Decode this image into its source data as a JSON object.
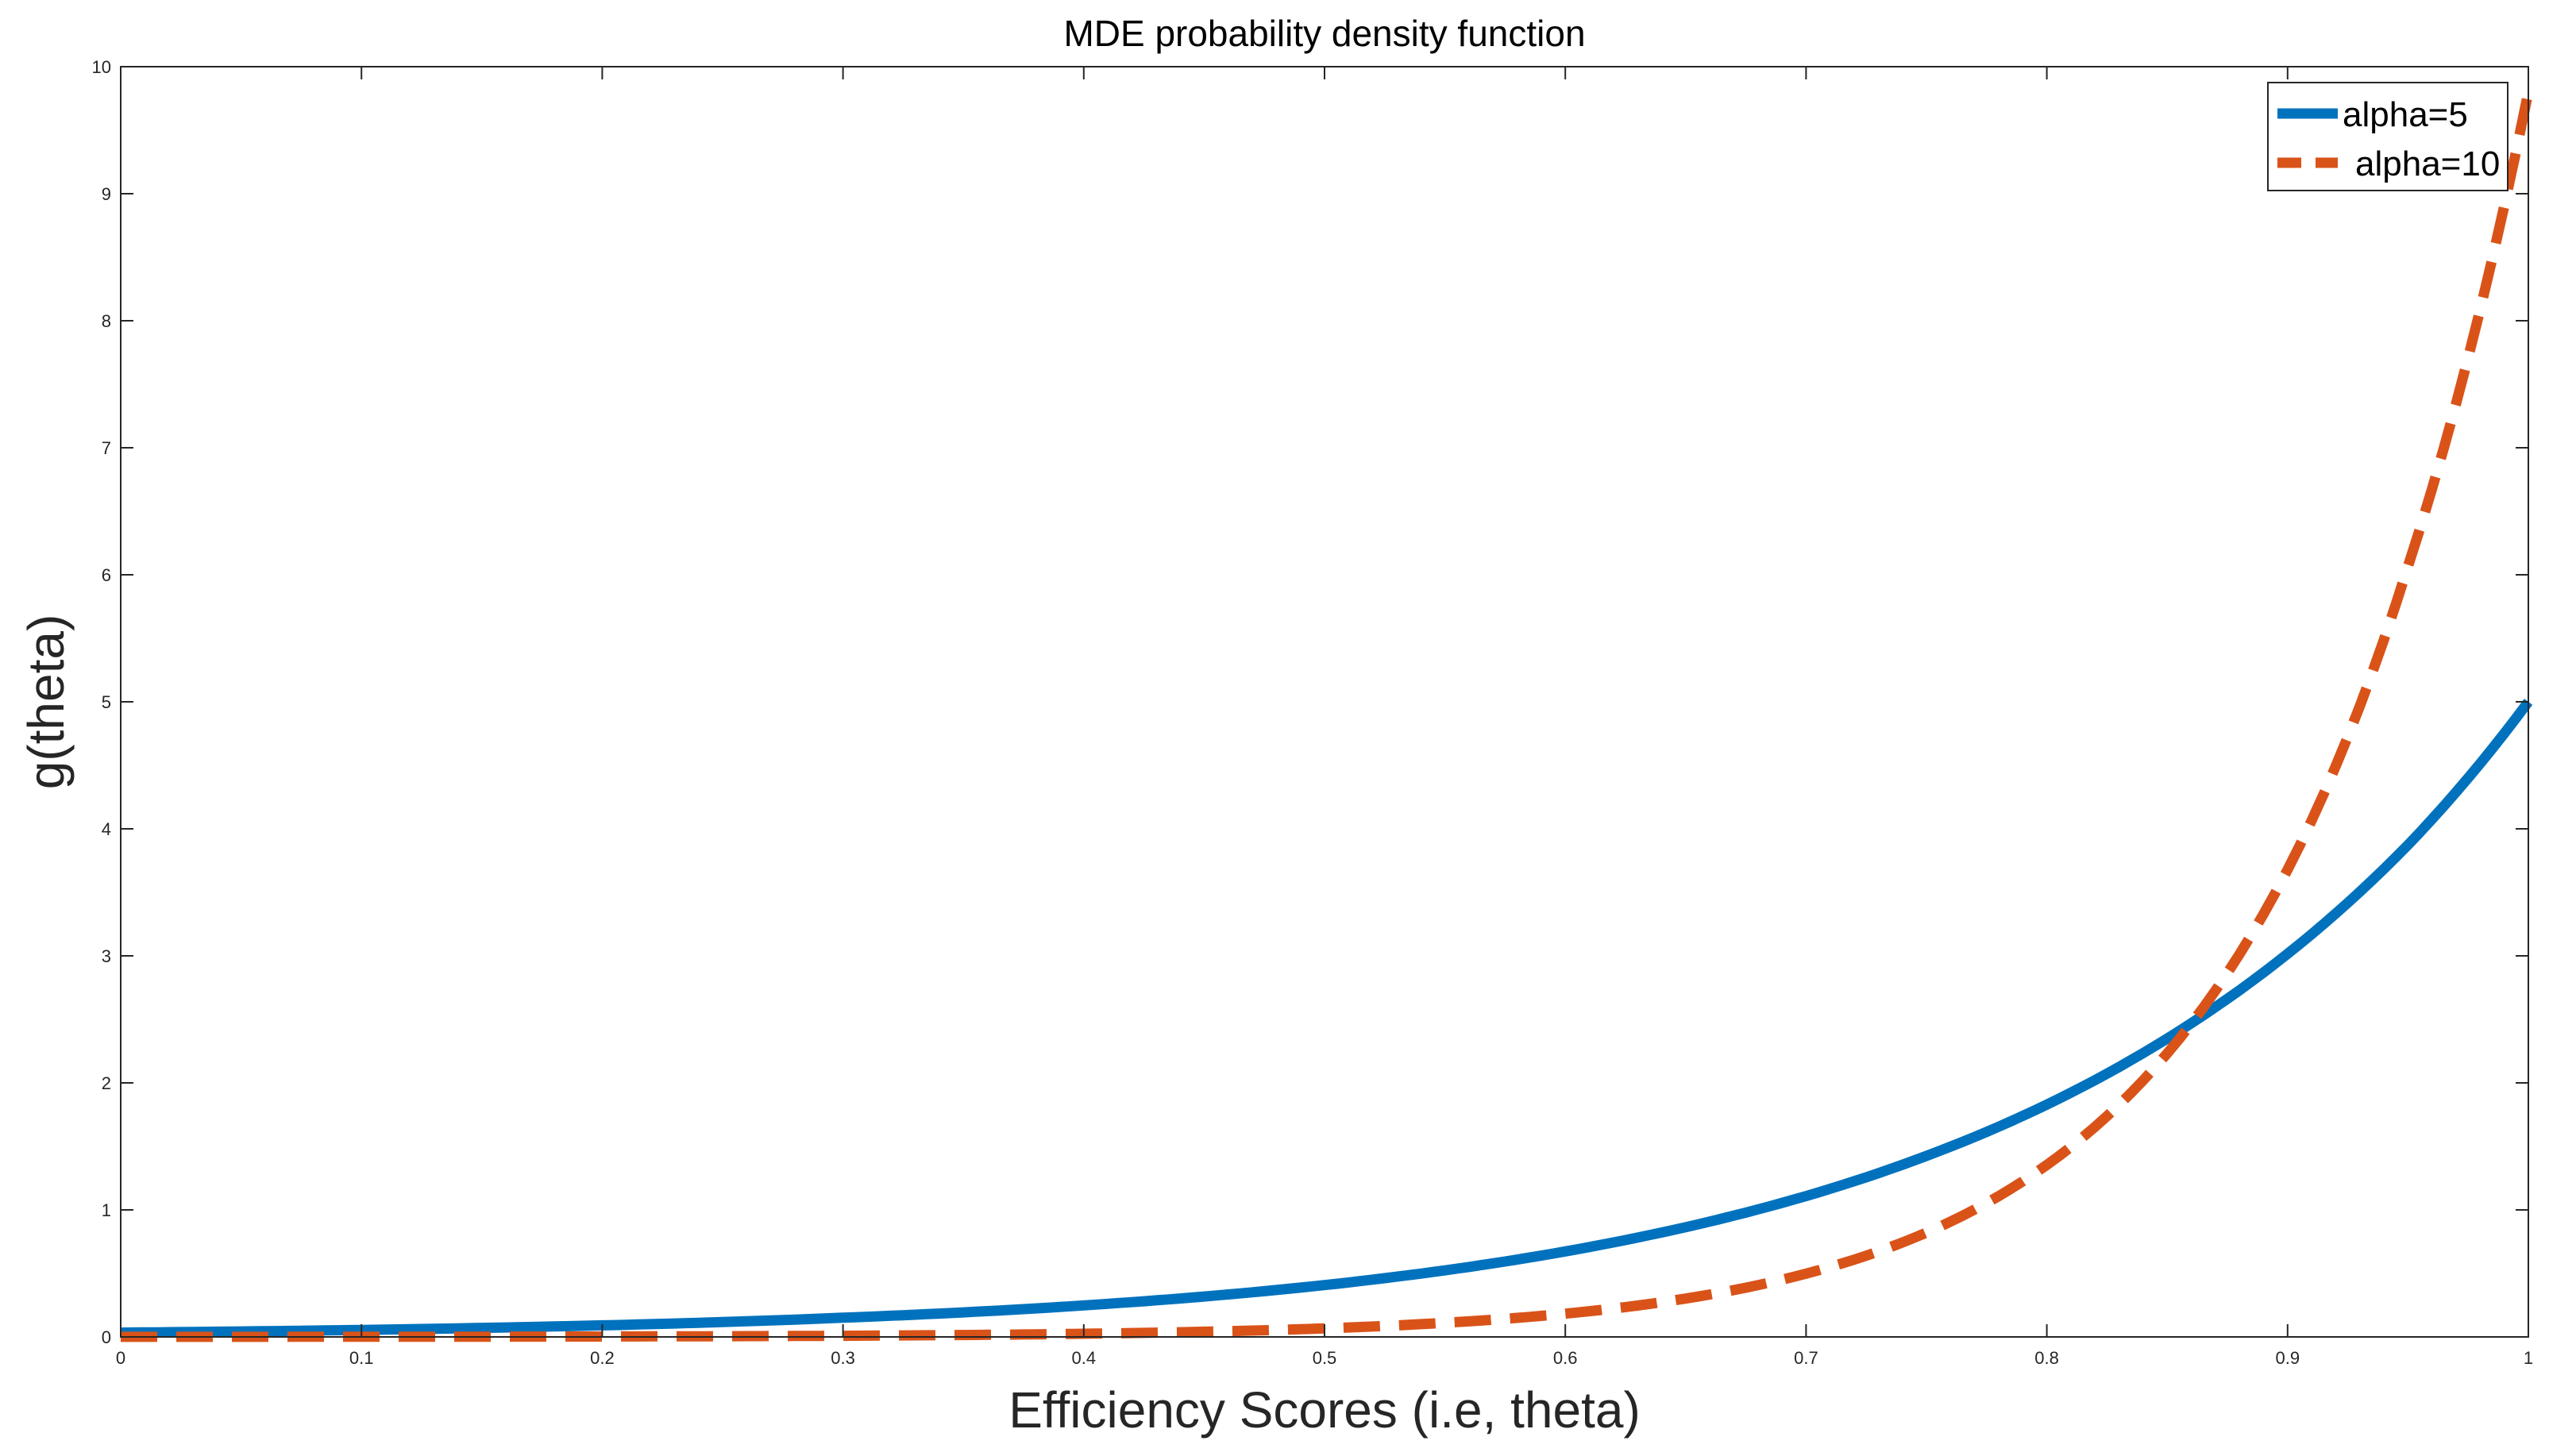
{
  "chart_data": {
    "type": "line",
    "title": "MDE probability density function",
    "xlabel": "Efficiency Scores (i.e, theta)",
    "ylabel": "g(theta)",
    "xlim": [
      0,
      1
    ],
    "ylim": [
      0,
      10
    ],
    "x_ticks": [
      "0",
      "0.1",
      "0.2",
      "0.3",
      "0.4",
      "0.5",
      "0.6",
      "0.7",
      "0.8",
      "0.9",
      "1"
    ],
    "y_ticks": [
      "0",
      "1",
      "2",
      "3",
      "4",
      "5",
      "6",
      "7",
      "8",
      "9",
      "10"
    ],
    "grid": false,
    "legend_position": "top-right",
    "x": [
      0,
      0.05,
      0.1,
      0.15,
      0.2,
      0.25,
      0.3,
      0.35,
      0.4,
      0.45,
      0.5,
      0.55,
      0.6,
      0.65,
      0.7,
      0.75,
      0.8,
      0.85,
      0.9,
      0.95,
      1
    ],
    "series": [
      {
        "name": "alpha=5",
        "color": "#0072BD",
        "style": "solid",
        "values": [
          0.034,
          0.043,
          0.055,
          0.071,
          0.091,
          0.117,
          0.151,
          0.193,
          0.248,
          0.318,
          0.408,
          0.524,
          0.673,
          0.864,
          1.109,
          1.425,
          1.829,
          2.349,
          3.016,
          3.873,
          5.0
        ]
      },
      {
        "name": "alpha=10",
        "color": "#D95319",
        "style": "dashed",
        "values": [
          0.0005,
          0.0008,
          0.0012,
          0.002,
          0.0034,
          0.0055,
          0.009,
          0.015,
          0.025,
          0.041,
          0.067,
          0.111,
          0.183,
          0.302,
          0.498,
          0.821,
          1.354,
          2.232,
          3.679,
          6.066,
          9.8
        ]
      }
    ]
  }
}
